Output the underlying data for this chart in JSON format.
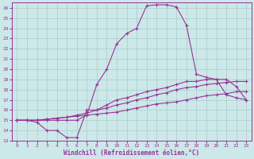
{
  "xlabel": "Windchill (Refroidissement éolien,°C)",
  "background_color": "#cce8e8",
  "grid_color": "#aacccc",
  "line_color": "#993399",
  "xlim": [
    -0.5,
    23.5
  ],
  "ylim": [
    13,
    26.5
  ],
  "xticks": [
    0,
    1,
    2,
    3,
    4,
    5,
    6,
    7,
    8,
    9,
    10,
    11,
    12,
    13,
    14,
    15,
    16,
    17,
    18,
    19,
    20,
    21,
    22,
    23
  ],
  "yticks": [
    13,
    14,
    15,
    16,
    17,
    18,
    19,
    20,
    21,
    22,
    23,
    24,
    25,
    26
  ],
  "line_big_x": [
    0,
    1,
    2,
    3,
    4,
    5,
    6,
    7,
    8,
    9,
    10,
    11,
    12,
    13,
    14,
    15,
    16,
    17,
    18,
    19,
    20,
    21,
    22,
    23
  ],
  "line_big_y": [
    15.0,
    15.0,
    15.0,
    15.0,
    15.0,
    15.0,
    15.0,
    15.5,
    18.5,
    20.0,
    22.5,
    23.5,
    24.0,
    26.2,
    26.3,
    26.3,
    26.1,
    24.3,
    19.5,
    19.2,
    19.0,
    19.0,
    18.3,
    17.0
  ],
  "line_mid1_x": [
    0,
    1,
    2,
    3,
    4,
    5,
    6,
    7,
    8,
    9,
    10,
    11,
    12,
    13,
    14,
    15,
    16,
    17,
    18,
    19,
    20,
    21,
    22,
    23
  ],
  "line_mid1_y": [
    15.0,
    15.0,
    14.8,
    14.0,
    14.0,
    13.3,
    13.3,
    16.0,
    16.0,
    16.5,
    17.0,
    17.2,
    17.5,
    17.8,
    18.0,
    18.2,
    18.5,
    18.8,
    18.8,
    19.0,
    19.0,
    17.5,
    17.2,
    17.0
  ],
  "line_mid2_x": [
    0,
    1,
    2,
    3,
    4,
    5,
    6,
    7,
    8,
    9,
    10,
    11,
    12,
    13,
    14,
    15,
    16,
    17,
    18,
    19,
    20,
    21,
    22,
    23
  ],
  "line_mid2_y": [
    15.0,
    15.0,
    15.0,
    15.1,
    15.2,
    15.3,
    15.5,
    15.7,
    16.0,
    16.2,
    16.5,
    16.7,
    17.0,
    17.2,
    17.5,
    17.7,
    18.0,
    18.2,
    18.3,
    18.5,
    18.6,
    18.7,
    18.8,
    18.8
  ],
  "line_low_x": [
    0,
    1,
    2,
    3,
    4,
    5,
    6,
    7,
    8,
    9,
    10,
    11,
    12,
    13,
    14,
    15,
    16,
    17,
    18,
    19,
    20,
    21,
    22,
    23
  ],
  "line_low_y": [
    15.0,
    15.0,
    15.0,
    15.1,
    15.2,
    15.3,
    15.4,
    15.5,
    15.6,
    15.7,
    15.8,
    16.0,
    16.2,
    16.4,
    16.6,
    16.7,
    16.8,
    17.0,
    17.2,
    17.4,
    17.5,
    17.6,
    17.8,
    17.8
  ]
}
